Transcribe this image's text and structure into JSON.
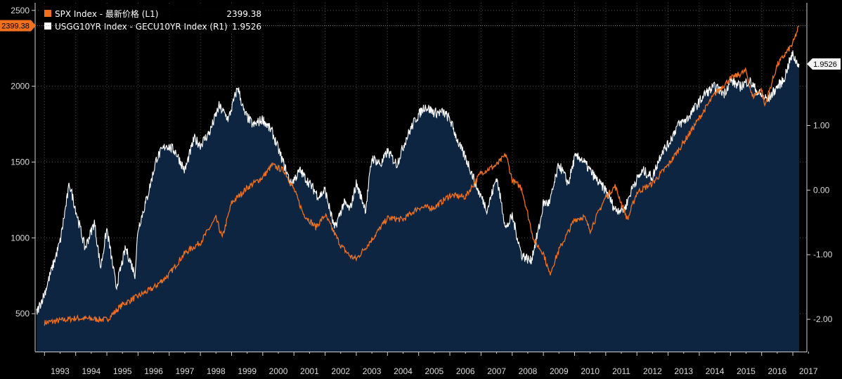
{
  "chart_data": {
    "type": "line",
    "title": "",
    "x_range": [
      1992.7,
      2017.45
    ],
    "x_tick_labels": [
      "1993",
      "1994",
      "1995",
      "1996",
      "1997",
      "1998",
      "1999",
      "2000",
      "2001",
      "2002",
      "2003",
      "2004",
      "2005",
      "2006",
      "2007",
      "2008",
      "2009",
      "2010",
      "2011",
      "2012",
      "2013",
      "2014",
      "2015",
      "2016",
      "2017"
    ],
    "left_axis": {
      "ylim": [
        250,
        2550
      ],
      "ticks": [
        500,
        1000,
        1500,
        2000,
        2500
      ]
    },
    "right_axis": {
      "ylim": [
        -2.5,
        2.9
      ],
      "ticks": [
        -2.0,
        -1.0,
        0.0,
        1.0
      ],
      "tick_labels": [
        "-2.00",
        "-1.00",
        "0.00",
        "1.00"
      ]
    },
    "grid": true,
    "legend_position": "top-left",
    "series": [
      {
        "name": "SPX Index - 最新价格 (L1)",
        "axis": "left",
        "color": "#f07020",
        "style": "line",
        "last_value": 2399.38,
        "last_label": "2399.38",
        "x": [
          1993.0,
          1994.0,
          1995.0,
          1995.5,
          1996.0,
          1996.5,
          1997.0,
          1997.5,
          1998.0,
          1998.5,
          1998.7,
          1999.0,
          1999.5,
          2000.0,
          2000.3,
          2000.7,
          2001.0,
          2001.3,
          2001.7,
          2002.0,
          2002.5,
          2002.8,
          2003.0,
          2003.5,
          2004.0,
          2004.5,
          2005.0,
          2005.5,
          2006.0,
          2006.5,
          2007.0,
          2007.5,
          2007.8,
          2008.0,
          2008.3,
          2008.7,
          2009.0,
          2009.2,
          2009.5,
          2010.0,
          2010.3,
          2010.5,
          2011.0,
          2011.3,
          2011.7,
          2012.0,
          2012.5,
          2013.0,
          2013.5,
          2014.0,
          2014.5,
          2015.0,
          2015.5,
          2015.7,
          2016.0,
          2016.1,
          2016.5,
          2017.0,
          2017.2
        ],
        "values": [
          440,
          470,
          460,
          560,
          615,
          670,
          760,
          900,
          970,
          1130,
          1000,
          1230,
          1330,
          1400,
          1480,
          1440,
          1320,
          1160,
          1070,
          1150,
          950,
          880,
          860,
          990,
          1130,
          1120,
          1200,
          1200,
          1280,
          1270,
          1430,
          1480,
          1550,
          1380,
          1330,
          980,
          900,
          760,
          920,
          1120,
          1140,
          1050,
          1270,
          1340,
          1120,
          1300,
          1360,
          1480,
          1630,
          1790,
          1950,
          2050,
          2100,
          1930,
          1980,
          1870,
          2140,
          2280,
          2399.38
        ]
      },
      {
        "name": "USGG10YR Index - GECU10YR Index (R1)",
        "axis": "right",
        "color": "#ffffff",
        "fill": "#0d2540",
        "style": "area",
        "last_value": 1.9526,
        "last_label": "1.9526",
        "x": [
          1992.75,
          1993.0,
          1993.5,
          1993.8,
          1994.0,
          1994.3,
          1994.6,
          1994.8,
          1995.0,
          1995.3,
          1995.6,
          1995.9,
          1996.0,
          1996.3,
          1996.6,
          1996.9,
          1997.2,
          1997.5,
          1997.8,
          1998.0,
          1998.3,
          1998.6,
          1998.9,
          1999.2,
          1999.4,
          1999.7,
          2000.0,
          2000.3,
          2000.6,
          2000.9,
          2001.2,
          2001.5,
          2001.8,
          2002.0,
          2002.3,
          2002.6,
          2002.8,
          2003.0,
          2003.3,
          2003.5,
          2003.8,
          2004.0,
          2004.3,
          2004.6,
          2004.9,
          2005.2,
          2005.5,
          2005.8,
          2006.0,
          2006.3,
          2006.6,
          2006.9,
          2007.2,
          2007.5,
          2007.8,
          2008.0,
          2008.3,
          2008.6,
          2008.9,
          2009.0,
          2009.2,
          2009.5,
          2009.8,
          2010.0,
          2010.2,
          2010.5,
          2010.8,
          2011.0,
          2011.3,
          2011.6,
          2011.9,
          2012.2,
          2012.5,
          2012.8,
          2013.0,
          2013.3,
          2013.6,
          2013.9,
          2014.2,
          2014.5,
          2014.8,
          2015.0,
          2015.3,
          2015.6,
          2015.9,
          2016.2,
          2016.5,
          2016.7,
          2016.9,
          2017.0,
          2017.1,
          2017.2
        ],
        "values": [
          -1.9,
          -1.6,
          -0.8,
          0.1,
          -0.3,
          -0.9,
          -0.5,
          -1.2,
          -0.6,
          -1.5,
          -0.9,
          -1.3,
          -0.6,
          -0.1,
          0.5,
          0.7,
          0.6,
          0.3,
          0.8,
          0.7,
          0.9,
          1.3,
          1.1,
          1.6,
          1.2,
          1.0,
          1.1,
          0.9,
          0.5,
          0.1,
          0.3,
          0.1,
          -0.1,
          0.0,
          -0.6,
          -0.2,
          -0.3,
          0.1,
          -0.3,
          0.5,
          0.4,
          0.6,
          0.4,
          0.8,
          1.1,
          1.3,
          1.2,
          1.2,
          1.1,
          0.7,
          0.4,
          0.0,
          -0.3,
          0.2,
          -0.6,
          -0.4,
          -1.0,
          -1.1,
          -0.5,
          -0.2,
          -0.2,
          0.4,
          0.1,
          0.5,
          0.5,
          0.3,
          0.1,
          0.0,
          -0.3,
          -0.3,
          0.1,
          0.3,
          0.2,
          0.6,
          0.7,
          1.0,
          1.1,
          1.3,
          1.5,
          1.6,
          1.5,
          1.7,
          1.6,
          1.7,
          1.5,
          1.4,
          1.6,
          1.7,
          2.0,
          2.1,
          2.0,
          1.9526
        ]
      }
    ]
  }
}
